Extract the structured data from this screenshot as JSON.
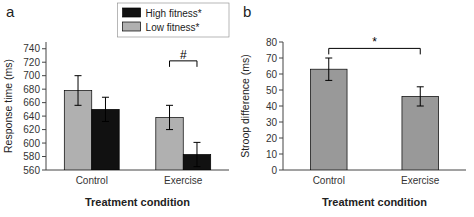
{
  "chart_data": [
    {
      "type": "bar",
      "title": "a",
      "categories": [
        "Control",
        "Exercise"
      ],
      "series": [
        {
          "name": "Low fitness*",
          "color": "#b0b0b0",
          "values": [
            678,
            638
          ],
          "errors": [
            22,
            18
          ]
        },
        {
          "name": "High fitness*",
          "color": "#111111",
          "values": [
            650,
            583
          ],
          "errors": [
            18,
            18
          ]
        }
      ],
      "ylabel": "Response time (ms)",
      "xlabel": "Treatment condition",
      "ylim": [
        560,
        750
      ],
      "yticks": [
        560,
        580,
        600,
        620,
        640,
        660,
        680,
        700,
        720,
        740
      ],
      "legend": "upper right",
      "grid": false,
      "annotations": [
        {
          "text": "#",
          "y": 722,
          "span": [
            "Exercise"
          ]
        }
      ]
    },
    {
      "type": "bar",
      "title": "b",
      "categories": [
        "Control",
        "Exercise"
      ],
      "values": [
        63,
        46
      ],
      "errors": [
        7,
        6
      ],
      "color": "#999999",
      "ylabel": "Stroop difference (ms)",
      "xlabel": "Treatment condition",
      "ylim": [
        0,
        80
      ],
      "yticks": [
        0,
        10,
        20,
        30,
        40,
        50,
        60,
        70,
        80
      ],
      "grid": false,
      "annotations": [
        {
          "text": "*",
          "y": 76,
          "span": [
            "Control",
            "Exercise"
          ]
        }
      ]
    }
  ]
}
